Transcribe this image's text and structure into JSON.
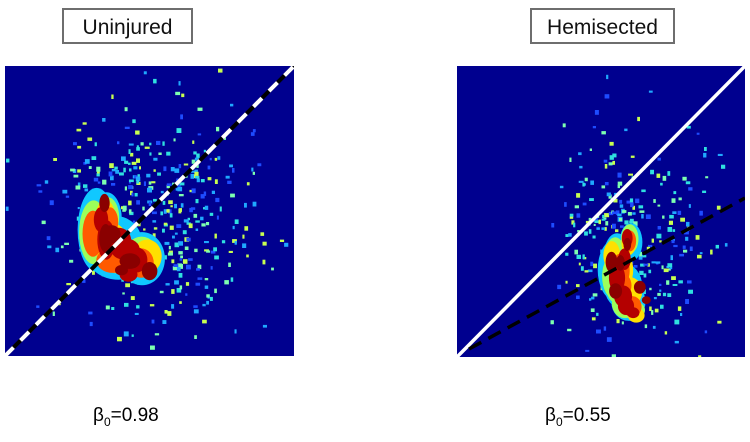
{
  "chart_data": [
    {
      "type": "heatmap",
      "title": "Uninjured",
      "beta_symbol": "β",
      "beta_subscript": "0",
      "beta_value": "=0.98",
      "colors": {
        "background": "#00008f",
        "identity_line": "#ffffff",
        "fit_line": "#000000"
      },
      "identity_line_style": "white dashes alternating with black (shared line)",
      "fit_slope": 0.98
    },
    {
      "type": "heatmap",
      "title": "Hemisected",
      "beta_symbol": "β",
      "beta_subscript": "0",
      "beta_value": "=0.55",
      "colors": {
        "background": "#00008f",
        "identity_line": "#ffffff",
        "fit_line": "#000000"
      },
      "identity_line_style": "solid white",
      "fit_slope": 0.55
    }
  ]
}
